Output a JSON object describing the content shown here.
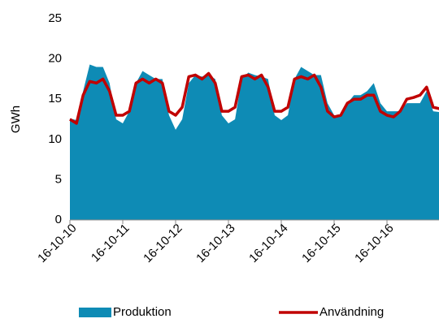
{
  "chart_data": {
    "type": "area_line",
    "y_label": "GWh",
    "categories": [
      "16-10-10",
      null,
      null,
      null,
      null,
      null,
      null,
      null,
      "16-10-11",
      null,
      null,
      null,
      null,
      null,
      null,
      null,
      "16-10-12",
      null,
      null,
      null,
      null,
      null,
      null,
      null,
      "16-10-13",
      null,
      null,
      null,
      null,
      null,
      null,
      null,
      "16-10-14",
      null,
      null,
      null,
      null,
      null,
      null,
      null,
      "16-10-15",
      null,
      null,
      null,
      null,
      null,
      null,
      null,
      "16-10-16",
      null,
      null,
      null,
      null,
      null,
      null,
      null,
      null
    ],
    "series": [
      {
        "name": "Produktion",
        "color": "#0e8bb5",
        "kind": "area",
        "values": [
          12.6,
          12.4,
          16,
          19.3,
          19,
          19,
          17,
          12.5,
          12,
          13.5,
          17,
          18.5,
          18,
          17.5,
          17.5,
          13,
          11.2,
          12.5,
          17,
          18,
          17.8,
          18,
          17.5,
          13,
          12,
          12.5,
          17.5,
          18.3,
          18,
          17.8,
          17.5,
          13,
          12.4,
          13,
          17.5,
          19,
          18.5,
          18,
          18,
          14.5,
          13,
          13,
          14.5,
          15.5,
          15.5,
          16,
          17,
          14.5,
          13.5,
          13.5,
          13.5,
          14.5,
          14.5,
          14.5,
          16,
          13.5,
          13.4
        ]
      },
      {
        "name": "Användning",
        "color": "#c00000",
        "kind": "line",
        "values": [
          12.5,
          12,
          15.5,
          17.2,
          17,
          17.5,
          16,
          13,
          13,
          13.5,
          17,
          17.5,
          17,
          17.5,
          17,
          13.5,
          13,
          14,
          17.8,
          18,
          17.5,
          18.2,
          17,
          13.5,
          13.5,
          14,
          17.8,
          18,
          17.5,
          18,
          16.5,
          13.5,
          13.5,
          14,
          17.5,
          17.8,
          17.5,
          18,
          16.5,
          13.5,
          12.8,
          13,
          14.5,
          15,
          15,
          15.5,
          15.5,
          13.5,
          13,
          12.8,
          13.5,
          15,
          15.2,
          15.5,
          16.5,
          14,
          13.8
        ]
      }
    ],
    "ylim": [
      0,
      25
    ],
    "yticks": [
      0,
      5,
      10,
      15,
      20,
      25
    ],
    "grid": false
  }
}
